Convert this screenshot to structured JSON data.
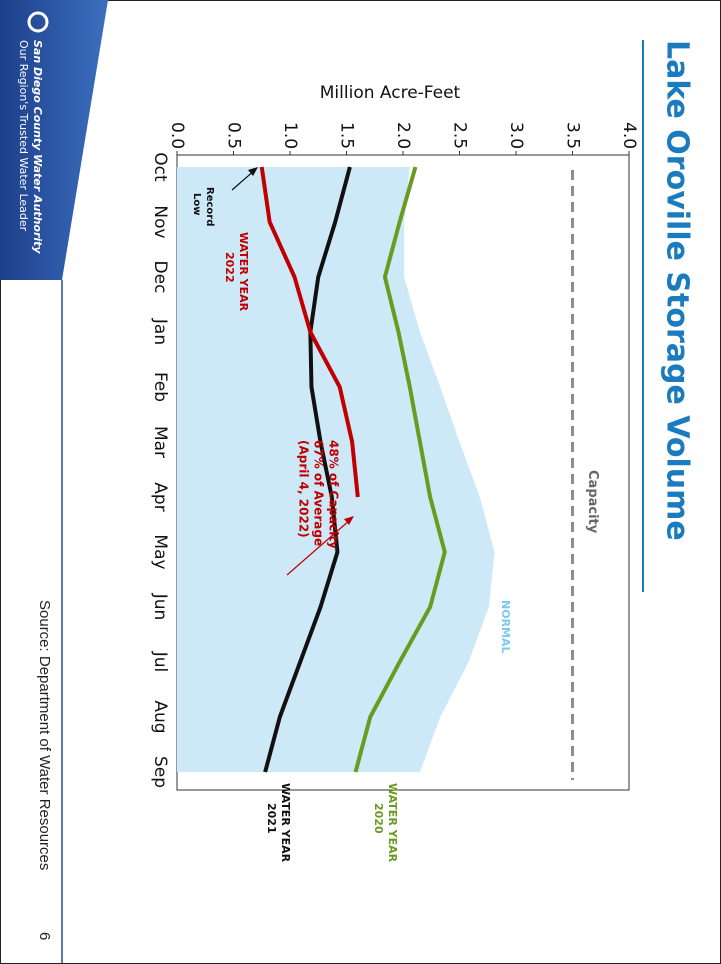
{
  "chart_data": {
    "type": "line",
    "title": "Lake Oroville Storage Volume",
    "y_label": "Million Acre-Feet",
    "categories": [
      "Oct",
      "Nov",
      "Dec",
      "Jan",
      "Feb",
      "Mar",
      "Apr",
      "May",
      "Jun",
      "Jul",
      "Aug",
      "Sep"
    ],
    "ylim": [
      0,
      4
    ],
    "yticks": [
      {
        "value": 0,
        "label": "0.0"
      },
      0.5,
      {
        "value": 1,
        "label": "1.0"
      },
      1.5,
      {
        "value": 2,
        "label": "2.0"
      },
      2.5,
      {
        "value": 3,
        "label": "3.0"
      },
      3.5,
      {
        "value": 4,
        "label": "4.0"
      }
    ],
    "area": {
      "name": "NORMAL",
      "color": "#cde9f8",
      "label_color": "#7cc8ee",
      "values": [
        2.06,
        2.01,
        2.01,
        2.15,
        2.33,
        2.5,
        2.68,
        2.81,
        2.76,
        2.58,
        2.33,
        2.15
      ]
    },
    "series": [
      {
        "label": [
          "WATER YEAR",
          "2020"
        ],
        "color": "#6a9a1f",
        "values": [
          2.11,
          1.97,
          1.84,
          1.96,
          2.06,
          2.15,
          2.24,
          2.37,
          2.24,
          1.97,
          1.71,
          1.58
        ]
      },
      {
        "label": [
          "WATER YEAR",
          "2021"
        ],
        "color": "#111111",
        "values": [
          1.53,
          1.4,
          1.25,
          1.18,
          1.19,
          1.27,
          1.37,
          1.42,
          1.27,
          1.09,
          0.91,
          0.78
        ]
      },
      {
        "label": [
          "WATER YEAR",
          "2022"
        ],
        "color": "#c00000",
        "values": [
          0.75,
          0.82,
          1.04,
          1.18,
          1.44,
          1.55,
          1.6,
          null,
          null,
          null,
          null,
          null
        ]
      }
    ],
    "reference_line": {
      "label": "Capacity",
      "value": 3.5,
      "color": "#8c8c8c"
    },
    "annotations": {
      "record_low": [
        "Record",
        "Low"
      ],
      "callout": [
        "48% of Capacity",
        "67% of Average",
        "(April 4, 2022)"
      ]
    }
  },
  "footer": {
    "source": "Source: Department of Water Resources",
    "page": "6",
    "logo": [
      "Our Region's Trusted Water Leader",
      "San Diego County Water Authority"
    ]
  }
}
